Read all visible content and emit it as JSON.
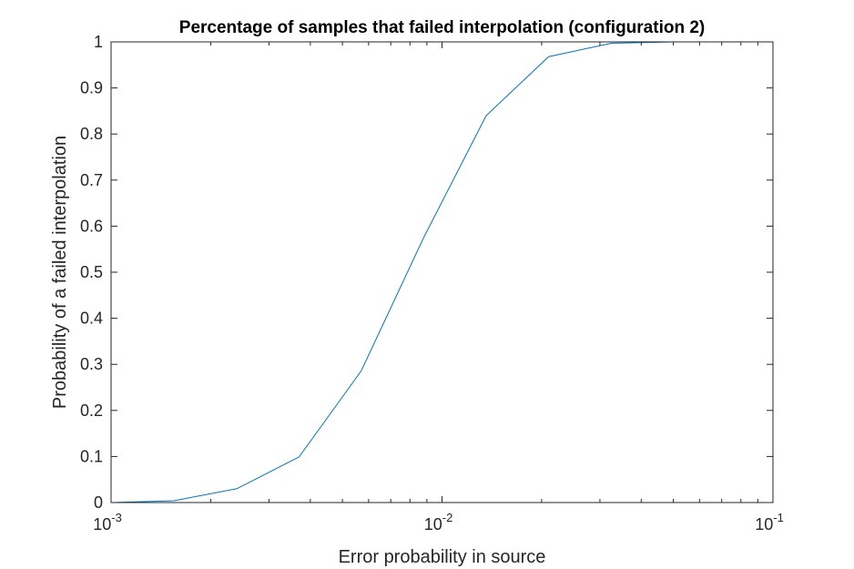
{
  "chart_data": {
    "type": "line",
    "title": "Percentage of samples that failed interpolation (configuration 2)",
    "xlabel": "Error probability in source",
    "ylabel": "Probability of a failed interpolation",
    "xscale": "log",
    "xlim": [
      0.001,
      0.1
    ],
    "ylim": [
      0,
      1
    ],
    "x_ticks": [
      {
        "value": 0.001,
        "base": "10",
        "exp": "-3"
      },
      {
        "value": 0.01,
        "base": "10",
        "exp": "-2"
      },
      {
        "value": 0.1,
        "base": "10",
        "exp": "-1"
      }
    ],
    "y_ticks": [
      {
        "value": 0,
        "label": "0"
      },
      {
        "value": 0.1,
        "label": "0.1"
      },
      {
        "value": 0.2,
        "label": "0.2"
      },
      {
        "value": 0.3,
        "label": "0.3"
      },
      {
        "value": 0.4,
        "label": "0.4"
      },
      {
        "value": 0.5,
        "label": "0.5"
      },
      {
        "value": 0.6,
        "label": "0.6"
      },
      {
        "value": 0.7,
        "label": "0.7"
      },
      {
        "value": 0.8,
        "label": "0.8"
      },
      {
        "value": 0.9,
        "label": "0.9"
      },
      {
        "value": 1,
        "label": "1"
      }
    ],
    "grid": false,
    "box": true,
    "series": [
      {
        "color": "#0072BD",
        "x": [
          0.001,
          0.00155,
          0.0024,
          0.0037,
          0.0057,
          0.0088,
          0.0136,
          0.021,
          0.0325,
          0.0503
        ],
        "y": [
          0.0,
          0.004,
          0.03,
          0.099,
          0.286,
          0.575,
          0.84,
          0.968,
          0.997,
          1.0
        ]
      }
    ]
  }
}
